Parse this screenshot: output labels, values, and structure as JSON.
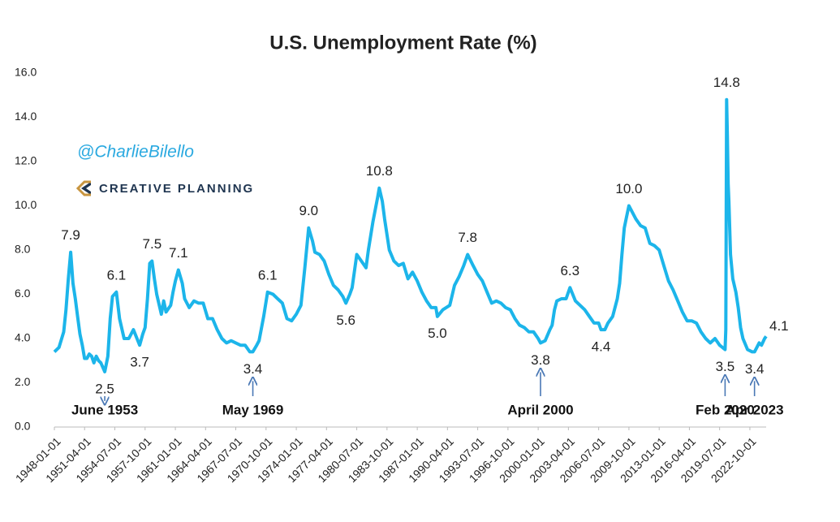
{
  "chart_data": {
    "type": "line",
    "title": "U.S. Unemployment Rate (%)",
    "watermark": "@CharlieBilello",
    "logo": "CREATIVE PLANNING",
    "color": "#1cb5ea",
    "x": [
      "1948-01-01",
      "1948-07-01",
      "1949-01-01",
      "1949-04-01",
      "1949-07-01",
      "1949-10-01",
      "1950-01-01",
      "1950-04-01",
      "1950-07-01",
      "1950-10-01",
      "1951-01-01",
      "1951-04-01",
      "1951-07-01",
      "1951-10-01",
      "1952-01-01",
      "1952-04-01",
      "1952-07-01",
      "1952-10-01",
      "1953-01-01",
      "1953-06-01",
      "1953-10-01",
      "1954-01-01",
      "1954-04-01",
      "1954-09-01",
      "1955-01-01",
      "1955-07-01",
      "1956-01-01",
      "1956-07-01",
      "1957-03-01",
      "1957-07-01",
      "1957-10-01",
      "1958-01-01",
      "1958-04-01",
      "1958-07-01",
      "1958-10-01",
      "1959-01-01",
      "1959-07-01",
      "1959-10-01",
      "1960-01-01",
      "1960-07-01",
      "1960-10-01",
      "1961-01-01",
      "1961-05-01",
      "1961-10-01",
      "1962-01-01",
      "1962-07-01",
      "1963-01-01",
      "1963-07-01",
      "1964-01-01",
      "1964-07-01",
      "1965-01-01",
      "1965-07-01",
      "1966-01-01",
      "1966-07-01",
      "1967-01-01",
      "1967-07-01",
      "1968-01-01",
      "1968-07-01",
      "1969-01-01",
      "1969-05-01",
      "1969-10-01",
      "1970-01-01",
      "1970-07-01",
      "1970-12-01",
      "1971-07-01",
      "1972-01-01",
      "1972-07-01",
      "1973-01-01",
      "1973-07-01",
      "1974-01-01",
      "1974-07-01",
      "1974-12-01",
      "1975-05-01",
      "1975-10-01",
      "1976-01-01",
      "1976-07-01",
      "1977-01-01",
      "1977-07-01",
      "1978-01-01",
      "1978-07-01",
      "1979-01-01",
      "1979-05-01",
      "1979-10-01",
      "1980-01-01",
      "1980-07-01",
      "1981-01-01",
      "1981-07-01",
      "1981-10-01",
      "1982-04-01",
      "1982-10-01",
      "1982-12-01",
      "1983-04-01",
      "1983-07-01",
      "1984-01-01",
      "1984-07-01",
      "1985-01-01",
      "1985-07-01",
      "1986-01-01",
      "1986-07-01",
      "1987-01-01",
      "1987-07-01",
      "1988-01-01",
      "1988-07-01",
      "1989-01-01",
      "1989-03-01",
      "1989-10-01",
      "1990-07-01",
      "1991-01-01",
      "1991-07-01",
      "1992-01-01",
      "1992-06-01",
      "1993-01-01",
      "1993-07-01",
      "1994-01-01",
      "1994-07-01",
      "1995-01-01",
      "1995-07-01",
      "1996-01-01",
      "1996-07-01",
      "1997-01-01",
      "1997-07-01",
      "1998-01-01",
      "1998-07-01",
      "1999-01-01",
      "1999-07-01",
      "2000-01-01",
      "2000-04-01",
      "2000-10-01",
      "2001-04-01",
      "2001-07-01",
      "2001-10-01",
      "2002-01-01",
      "2002-07-01",
      "2003-01-01",
      "2003-06-01",
      "2004-01-01",
      "2004-07-01",
      "2005-01-01",
      "2005-07-01",
      "2006-01-01",
      "2006-07-01",
      "2006-10-01",
      "2007-03-01",
      "2007-07-01",
      "2008-01-01",
      "2008-07-01",
      "2008-10-01",
      "2009-01-01",
      "2009-04-01",
      "2009-07-01",
      "2009-10-01",
      "2010-01-01",
      "2010-07-01",
      "2011-01-01",
      "2011-07-01",
      "2012-01-01",
      "2012-07-01",
      "2013-01-01",
      "2013-07-01",
      "2014-01-01",
      "2014-07-01",
      "2015-01-01",
      "2015-07-01",
      "2016-01-01",
      "2016-07-01",
      "2017-01-01",
      "2017-07-01",
      "2018-01-01",
      "2018-07-01",
      "2019-01-01",
      "2019-07-01",
      "2020-02-01",
      "2020-03-01",
      "2020-04-01",
      "2020-05-01",
      "2020-06-01",
      "2020-07-01",
      "2020-09-01",
      "2020-12-01",
      "2021-04-01",
      "2021-07-01",
      "2021-10-01",
      "2022-01-01",
      "2022-07-01",
      "2023-01-01",
      "2023-04-01",
      "2023-10-01",
      "2024-01-01",
      "2024-05-01",
      "2024-07-01"
    ],
    "values": [
      3.4,
      3.6,
      4.3,
      5.3,
      6.7,
      7.9,
      6.5,
      5.8,
      5.0,
      4.2,
      3.7,
      3.1,
      3.1,
      3.3,
      3.2,
      2.9,
      3.2,
      3.0,
      2.9,
      2.5,
      3.2,
      4.9,
      5.9,
      6.1,
      4.9,
      4.0,
      4.0,
      4.4,
      3.7,
      4.2,
      4.5,
      5.8,
      7.4,
      7.5,
      6.7,
      6.0,
      5.1,
      5.7,
      5.2,
      5.5,
      6.1,
      6.6,
      7.1,
      6.5,
      5.8,
      5.4,
      5.7,
      5.6,
      5.6,
      4.9,
      4.9,
      4.4,
      4.0,
      3.8,
      3.9,
      3.8,
      3.7,
      3.7,
      3.4,
      3.4,
      3.7,
      3.9,
      5.0,
      6.1,
      6.0,
      5.8,
      5.6,
      4.9,
      4.8,
      5.1,
      5.5,
      7.2,
      9.0,
      8.4,
      7.9,
      7.8,
      7.5,
      6.9,
      6.4,
      6.2,
      5.9,
      5.6,
      6.0,
      6.3,
      7.8,
      7.5,
      7.2,
      8.0,
      9.3,
      10.4,
      10.8,
      10.2,
      9.4,
      8.0,
      7.5,
      7.3,
      7.4,
      6.7,
      7.0,
      6.6,
      6.1,
      5.7,
      5.4,
      5.4,
      5.0,
      5.3,
      5.5,
      6.4,
      6.8,
      7.3,
      7.8,
      7.3,
      6.9,
      6.6,
      6.1,
      5.6,
      5.7,
      5.6,
      5.4,
      5.3,
      4.9,
      4.6,
      4.5,
      4.3,
      4.3,
      4.0,
      3.8,
      3.9,
      4.4,
      4.6,
      5.3,
      5.7,
      5.8,
      5.8,
      6.3,
      5.7,
      5.5,
      5.3,
      5.0,
      4.7,
      4.7,
      4.4,
      4.4,
      4.7,
      5.0,
      5.8,
      6.5,
      7.8,
      9.0,
      9.5,
      10.0,
      9.8,
      9.4,
      9.1,
      9.0,
      8.3,
      8.2,
      8.0,
      7.3,
      6.6,
      6.2,
      5.7,
      5.2,
      4.8,
      4.8,
      4.7,
      4.3,
      4.0,
      3.8,
      4.0,
      3.7,
      3.5,
      4.4,
      14.8,
      13.2,
      11.0,
      10.2,
      7.8,
      6.7,
      6.1,
      5.4,
      4.5,
      4.0,
      3.5,
      3.4,
      3.4,
      3.8,
      3.7,
      4.0,
      4.1
    ],
    "xlim": [
      "1948-01-01",
      "2024-07-01"
    ],
    "xticks": [
      "1948-01-01",
      "1951-04-01",
      "1954-07-01",
      "1957-10-01",
      "1961-01-01",
      "1964-04-01",
      "1967-07-01",
      "1970-10-01",
      "1974-01-01",
      "1977-04-01",
      "1980-07-01",
      "1983-10-01",
      "1987-01-01",
      "1990-04-01",
      "1993-07-01",
      "1996-10-01",
      "2000-01-01",
      "2003-04-01",
      "2006-07-01",
      "2009-10-01",
      "2013-01-01",
      "2016-04-01",
      "2019-07-01",
      "2022-10-01"
    ],
    "ylim": [
      0,
      16
    ],
    "yticks": [
      {
        "value": 0,
        "label": "0.0"
      },
      {
        "value": 2,
        "label": "2.0"
      },
      {
        "value": 4,
        "label": "4.0"
      },
      {
        "value": 6,
        "label": "6.0"
      },
      {
        "value": 8,
        "label": "8.0"
      },
      {
        "value": 10,
        "label": "10.0"
      },
      {
        "value": 12,
        "label": "12.0"
      },
      {
        "value": 14,
        "label": "14.0"
      },
      {
        "value": 16,
        "label": "16.0"
      }
    ],
    "annotations": [
      {
        "x": "1949-10-01",
        "value": 7.9,
        "label": "7.9",
        "place": "above"
      },
      {
        "x": "1953-06-01",
        "value": 2.5,
        "label": "2.5",
        "place": "below",
        "note": "June 1953"
      },
      {
        "x": "1954-09-01",
        "value": 6.1,
        "label": "6.1",
        "place": "above"
      },
      {
        "x": "1957-03-01",
        "value": 3.7,
        "label": "3.7",
        "place": "below"
      },
      {
        "x": "1958-07-01",
        "value": 7.5,
        "label": "7.5",
        "place": "above"
      },
      {
        "x": "1961-05-01",
        "value": 7.1,
        "label": "7.1",
        "place": "above"
      },
      {
        "x": "1969-05-01",
        "value": 3.4,
        "label": "3.4",
        "place": "below",
        "note": "May 1969"
      },
      {
        "x": "1970-12-01",
        "value": 6.1,
        "label": "6.1",
        "place": "above"
      },
      {
        "x": "1975-05-01",
        "value": 9.0,
        "label": "9.0",
        "place": "above"
      },
      {
        "x": "1979-05-01",
        "value": 5.6,
        "label": "5.6",
        "place": "below"
      },
      {
        "x": "1982-12-01",
        "value": 10.8,
        "label": "10.8",
        "place": "above"
      },
      {
        "x": "1989-03-01",
        "value": 5.0,
        "label": "5.0",
        "place": "below"
      },
      {
        "x": "1992-06-01",
        "value": 7.8,
        "label": "7.8",
        "place": "above"
      },
      {
        "x": "2000-04-01",
        "value": 3.8,
        "label": "3.8",
        "place": "below",
        "note": "April 2000"
      },
      {
        "x": "2003-06-01",
        "value": 6.3,
        "label": "6.3",
        "place": "above"
      },
      {
        "x": "2006-10-01",
        "value": 4.4,
        "label": "4.4",
        "place": "below"
      },
      {
        "x": "2009-10-01",
        "value": 10.0,
        "label": "10.0",
        "place": "above"
      },
      {
        "x": "2020-04-01",
        "value": 14.8,
        "label": "14.8",
        "place": "above"
      },
      {
        "x": "2020-02-01",
        "value": 3.5,
        "label": "3.5",
        "place": "below",
        "note": "Feb 2020"
      },
      {
        "x": "2023-04-01",
        "value": 3.4,
        "label": "3.4",
        "place": "below",
        "note": "Apr 2023"
      },
      {
        "x": "2024-07-01",
        "value": 4.1,
        "label": "4.1",
        "place": "right"
      }
    ]
  }
}
